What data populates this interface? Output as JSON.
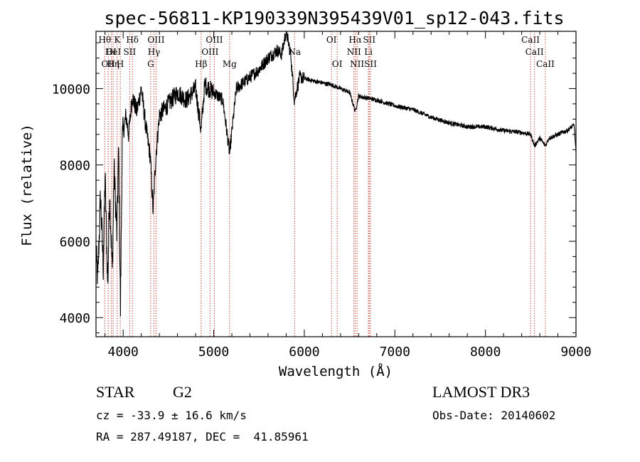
{
  "chart_data": {
    "type": "line",
    "title": "spec-56811-KP190339N395439V01_sp12-043.fits",
    "xlabel": "Wavelength (Å)",
    "ylabel": "Flux (relative)",
    "xlim": [
      3700,
      9000
    ],
    "ylim": [
      3500,
      11500
    ],
    "x_ticks": [
      4000,
      5000,
      6000,
      7000,
      8000,
      9000
    ],
    "y_ticks": [
      4000,
      6000,
      8000,
      10000
    ],
    "grid": false,
    "spectrum_knots": [
      [
        3700,
        5700
      ],
      [
        3720,
        5000
      ],
      [
        3750,
        7200
      ],
      [
        3780,
        5300
      ],
      [
        3800,
        7700
      ],
      [
        3830,
        4800
      ],
      [
        3850,
        7300
      ],
      [
        3880,
        5200
      ],
      [
        3900,
        7900
      ],
      [
        3930,
        6200
      ],
      [
        3950,
        8400
      ],
      [
        3970,
        4200
      ],
      [
        3990,
        8700
      ],
      [
        4030,
        9300
      ],
      [
        4060,
        8800
      ],
      [
        4100,
        9800
      ],
      [
        4150,
        9400
      ],
      [
        4200,
        10000
      ],
      [
        4250,
        9000
      ],
      [
        4300,
        8200
      ],
      [
        4330,
        6800
      ],
      [
        4360,
        8200
      ],
      [
        4400,
        9300
      ],
      [
        4500,
        9600
      ],
      [
        4600,
        9900
      ],
      [
        4700,
        9700
      ],
      [
        4800,
        10000
      ],
      [
        4860,
        8900
      ],
      [
        4900,
        10100
      ],
      [
        5000,
        9900
      ],
      [
        5100,
        9700
      ],
      [
        5175,
        8300
      ],
      [
        5250,
        10000
      ],
      [
        5400,
        10300
      ],
      [
        5500,
        10500
      ],
      [
        5600,
        10800
      ],
      [
        5700,
        11000
      ],
      [
        5750,
        10900
      ],
      [
        5800,
        11500
      ],
      [
        5850,
        10900
      ],
      [
        5890,
        9700
      ],
      [
        5950,
        10300
      ],
      [
        6100,
        10200
      ],
      [
        6300,
        10100
      ],
      [
        6500,
        9900
      ],
      [
        6563,
        9400
      ],
      [
        6600,
        9800
      ],
      [
        6800,
        9700
      ],
      [
        7000,
        9550
      ],
      [
        7200,
        9450
      ],
      [
        7400,
        9250
      ],
      [
        7600,
        9100
      ],
      [
        7800,
        9000
      ],
      [
        8000,
        9000
      ],
      [
        8200,
        8900
      ],
      [
        8400,
        8850
      ],
      [
        8500,
        8800
      ],
      [
        8542,
        8500
      ],
      [
        8600,
        8700
      ],
      [
        8662,
        8500
      ],
      [
        8700,
        8700
      ],
      [
        8800,
        8800
      ],
      [
        8900,
        8900
      ],
      [
        8980,
        9050
      ],
      [
        9000,
        8300
      ]
    ],
    "spectral_lines": [
      {
        "wl": 3797,
        "row": 0,
        "label": "Hθ"
      },
      {
        "wl": 3835,
        "row": 2,
        "label": "OII"
      },
      {
        "wl": 3869,
        "row": 1,
        "label": "OI"
      },
      {
        "wl": 3889,
        "row": 2,
        "label": "Hη"
      },
      {
        "wl": 3889,
        "row": 1,
        "label": "HeI"
      },
      {
        "wl": 3934,
        "row": 0,
        "label": "K"
      },
      {
        "wl": 3968,
        "row": 2,
        "label": "H"
      },
      {
        "wl": 4072,
        "row": 1,
        "label": "SII"
      },
      {
        "wl": 4102,
        "row": 0,
        "label": "Hδ"
      },
      {
        "wl": 4304,
        "row": 2,
        "label": "G"
      },
      {
        "wl": 4340,
        "row": 1,
        "label": "Hγ"
      },
      {
        "wl": 4363,
        "row": 0,
        "label": "OIII"
      },
      {
        "wl": 4861,
        "row": 2,
        "label": "Hβ"
      },
      {
        "wl": 4959,
        "row": 1,
        "label": "OIII"
      },
      {
        "wl": 5007,
        "row": 0,
        "label": "OIII"
      },
      {
        "wl": 5175,
        "row": 2,
        "label": "Mg"
      },
      {
        "wl": 5893,
        "row": 1,
        "label": "Na"
      },
      {
        "wl": 6300,
        "row": 0,
        "label": "OI"
      },
      {
        "wl": 6363,
        "row": 2,
        "label": "OI"
      },
      {
        "wl": 6548,
        "row": 1,
        "label": "NII"
      },
      {
        "wl": 6563,
        "row": 0,
        "label": "Hα"
      },
      {
        "wl": 6583,
        "row": 2,
        "label": "NII"
      },
      {
        "wl": 6708,
        "row": 1,
        "label": "Li"
      },
      {
        "wl": 6717,
        "row": 0,
        "label": "SII"
      },
      {
        "wl": 6731,
        "row": 2,
        "label": "SII"
      },
      {
        "wl": 8498,
        "row": 0,
        "label": "CaII"
      },
      {
        "wl": 8542,
        "row": 1,
        "label": "CaII"
      },
      {
        "wl": 8662,
        "row": 2,
        "label": "CaII"
      }
    ]
  },
  "info": {
    "class": "STAR",
    "subclass": "G2",
    "survey": "LAMOST DR3",
    "cz": "cz = -33.9 ± 16.6 km/s",
    "obs_date": "Obs-Date: 20140602",
    "radec": "RA = 287.49187, DEC =  41.85961"
  }
}
